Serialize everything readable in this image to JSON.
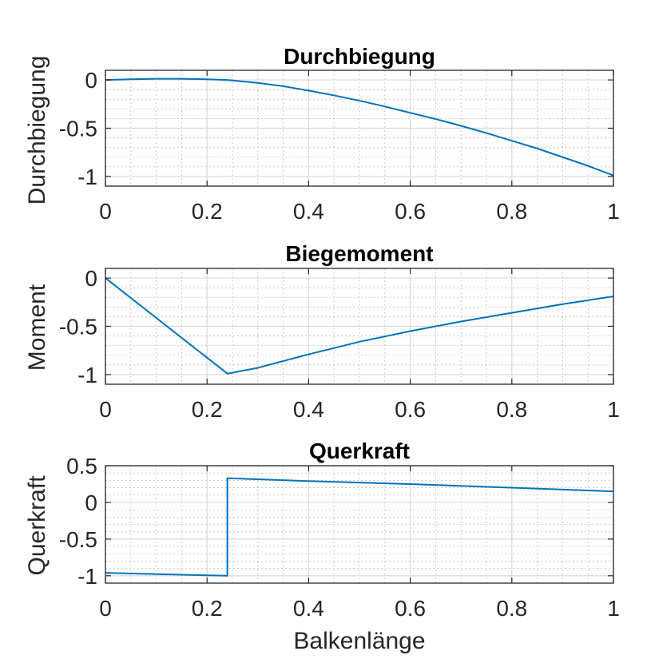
{
  "chart_data": [
    {
      "type": "line",
      "title": "Durchbiegung",
      "xlabel": "",
      "ylabel": "Durchbiegung",
      "xlim": [
        0,
        1
      ],
      "ylim": [
        -1.1,
        0.1
      ],
      "grid": true,
      "minor_grid": true,
      "xticks": [
        0,
        0.2,
        0.4,
        0.6,
        0.8,
        1
      ],
      "xtick_labels": [
        "0",
        "0.2",
        "0.4",
        "0.6",
        "0.8",
        "1"
      ],
      "yticks": [
        -1,
        -0.5,
        0
      ],
      "ytick_labels": [
        "-1",
        "-0.5",
        "0"
      ],
      "series": [
        {
          "color": "#0072BD",
          "x": [
            0,
            0.05,
            0.1,
            0.15,
            0.2,
            0.24,
            0.3,
            0.35,
            0.4,
            0.45,
            0.5,
            0.55,
            0.6,
            0.65,
            0.7,
            0.75,
            0.8,
            0.85,
            0.9,
            0.95,
            1.0
          ],
          "y": [
            0,
            0.007,
            0.012,
            0.012,
            0.007,
            0,
            -0.03,
            -0.065,
            -0.11,
            -0.16,
            -0.215,
            -0.275,
            -0.34,
            -0.405,
            -0.475,
            -0.55,
            -0.63,
            -0.71,
            -0.8,
            -0.89,
            -0.99
          ]
        }
      ]
    },
    {
      "type": "line",
      "title": "Biegemoment",
      "xlabel": "",
      "ylabel": "Moment",
      "xlim": [
        0,
        1
      ],
      "ylim": [
        -1.1,
        0.1
      ],
      "grid": true,
      "minor_grid": true,
      "xticks": [
        0,
        0.2,
        0.4,
        0.6,
        0.8,
        1
      ],
      "xtick_labels": [
        "0",
        "0.2",
        "0.4",
        "0.6",
        "0.8",
        "1"
      ],
      "yticks": [
        -1,
        -0.5,
        0
      ],
      "ytick_labels": [
        "-1",
        "-0.5",
        "0"
      ],
      "series": [
        {
          "color": "#0072BD",
          "x": [
            0,
            0.24,
            0.3,
            0.4,
            0.5,
            0.6,
            0.7,
            0.8,
            0.9,
            1.0
          ],
          "y": [
            0,
            -0.99,
            -0.93,
            -0.79,
            -0.66,
            -0.55,
            -0.45,
            -0.36,
            -0.27,
            -0.19
          ]
        }
      ]
    },
    {
      "type": "line",
      "title": "Querkraft",
      "xlabel": "Balkenlänge",
      "ylabel": "Querkraft",
      "xlim": [
        0,
        1
      ],
      "ylim": [
        -1.1,
        0.5
      ],
      "grid": true,
      "minor_grid": true,
      "xticks": [
        0,
        0.2,
        0.4,
        0.6,
        0.8,
        1
      ],
      "xtick_labels": [
        "0",
        "0.2",
        "0.4",
        "0.6",
        "0.8",
        "1"
      ],
      "yticks": [
        -1,
        -0.5,
        0,
        0.5
      ],
      "ytick_labels": [
        "-1",
        "-0.5",
        "0",
        "0.5"
      ],
      "series": [
        {
          "color": "#0072BD",
          "x": [
            0,
            0.24,
            0.24,
            0.4,
            0.6,
            0.8,
            1.0
          ],
          "y": [
            -0.96,
            -1.0,
            0.33,
            0.29,
            0.25,
            0.2,
            0.15
          ]
        }
      ]
    }
  ]
}
